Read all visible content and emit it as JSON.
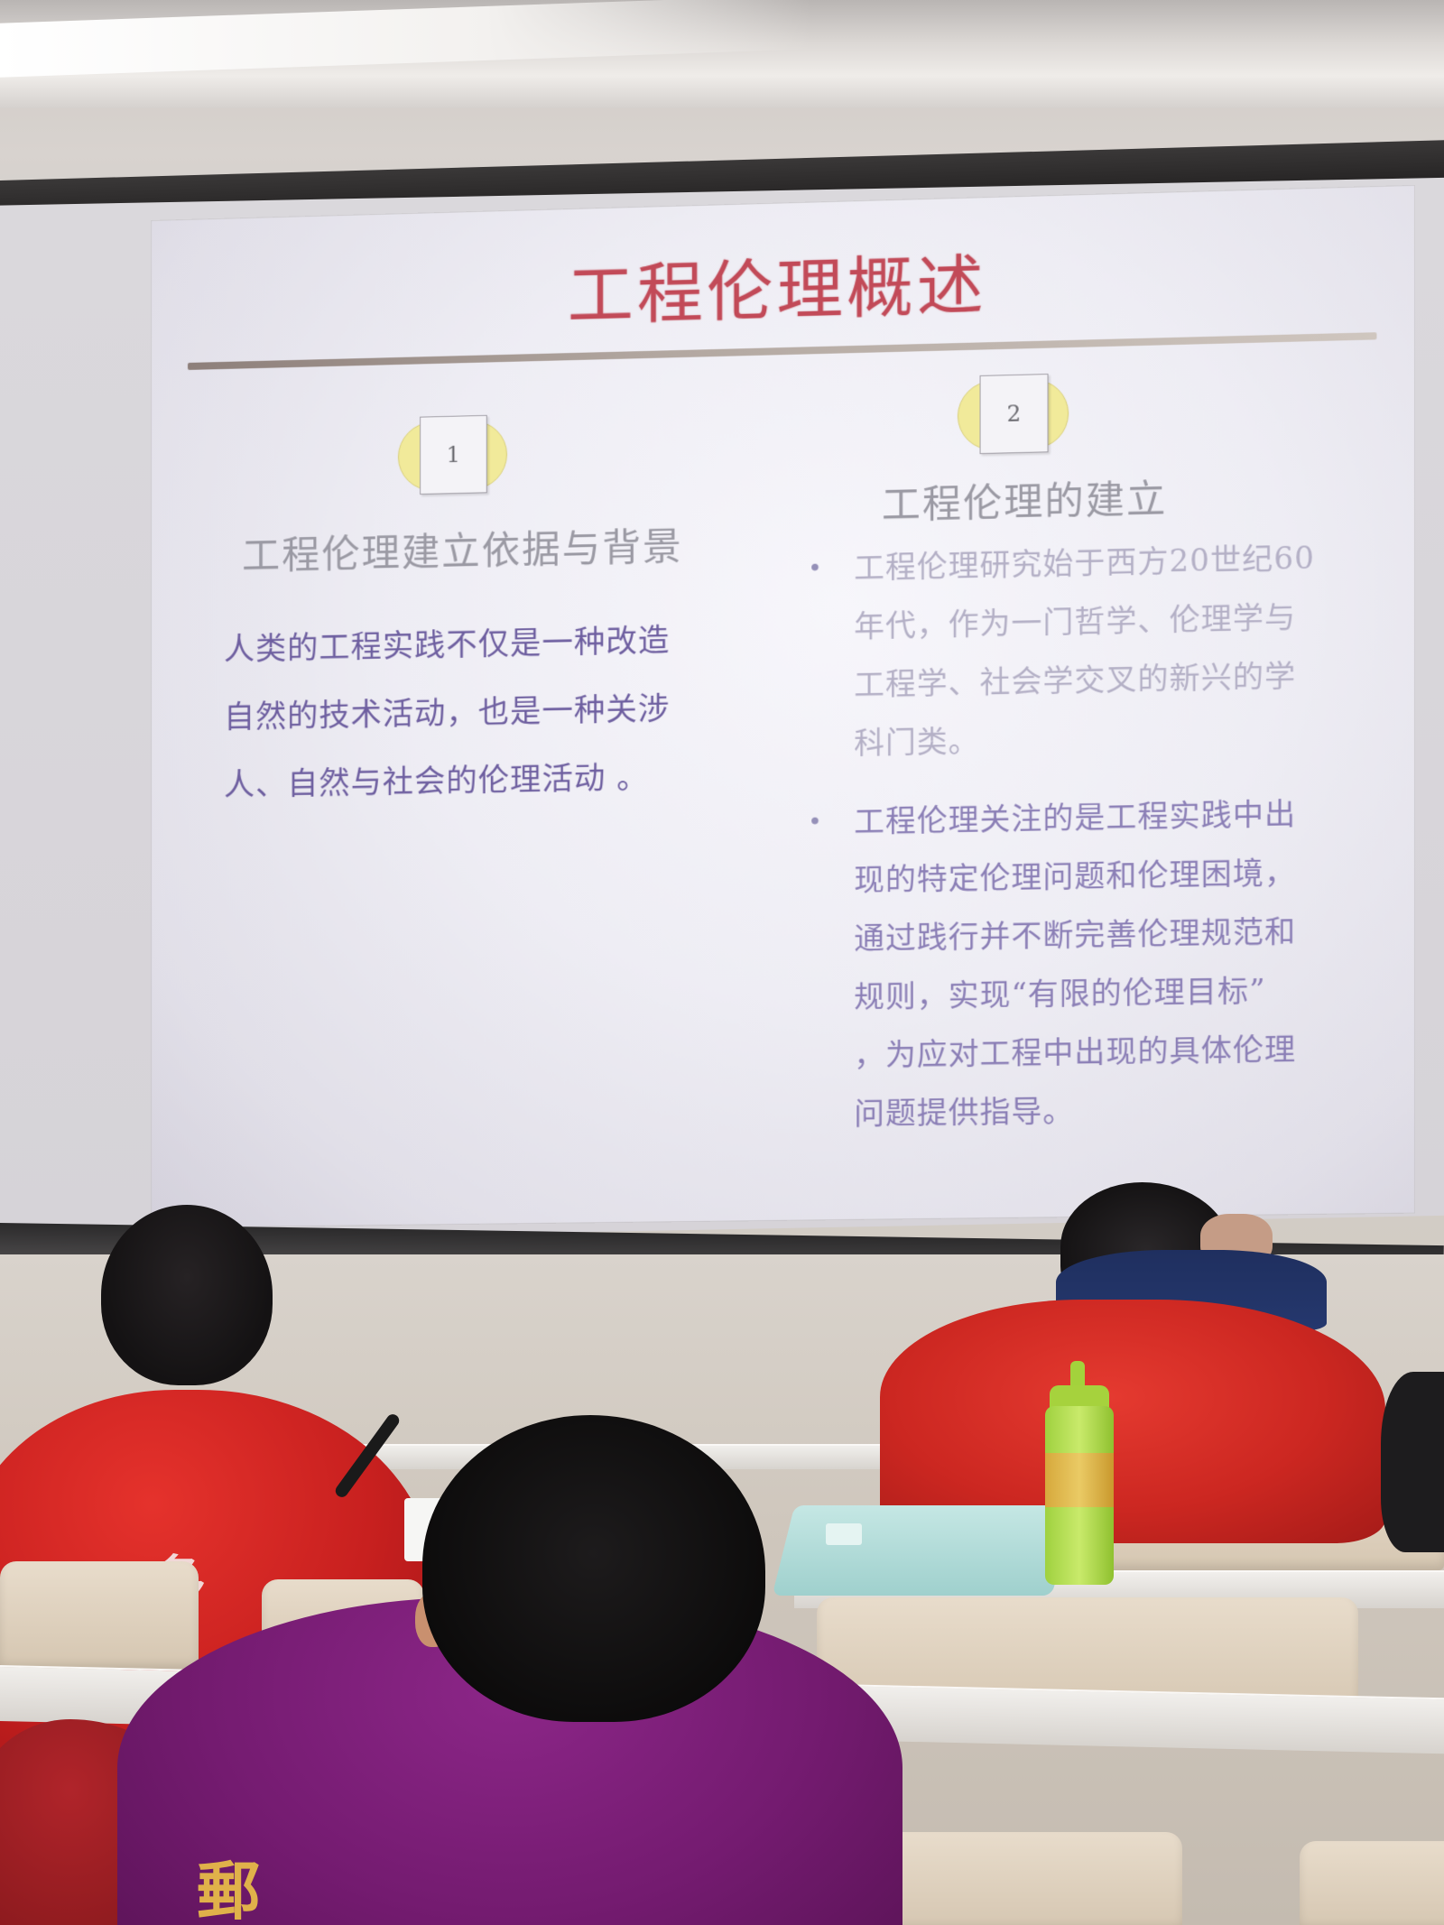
{
  "slide": {
    "title": "工程伦理概述",
    "left": {
      "number": "1",
      "heading": "工程伦理建立依据与背景",
      "lines": [
        "人类的工程实践不仅是一种改造",
        "自然的技术活动，也是一种关涉",
        "人、自然与社会的伦理活动 。"
      ]
    },
    "right": {
      "number": "2",
      "heading": "工程伦理的建立",
      "bullets": [
        {
          "lines": [
            "工程伦理研究始于西方20世纪60",
            "年代，作为一门哲学、伦理学与",
            "工程学、社会学交叉的新兴的学",
            "科门类。"
          ]
        },
        {
          "lines": [
            "工程伦理关注的是工程实践中出",
            "现的特定伦理问题和伦理困境，",
            "通过践行并不断完善伦理规范和",
            "规则，实现“有限的伦理目标”",
            "，为应对工程中出现的具体伦理",
            "问题提供指导。"
          ]
        }
      ]
    }
  },
  "scene": {
    "left_student_jacket_text": "多",
    "front_student_jacket_text": "郵"
  },
  "colors": {
    "title": "#c24a58",
    "left_body": "#6e5fa0",
    "right_body": "#8b7fb6",
    "heading": "#9b9aa4",
    "badge_yellow": "#f1ea9a"
  }
}
